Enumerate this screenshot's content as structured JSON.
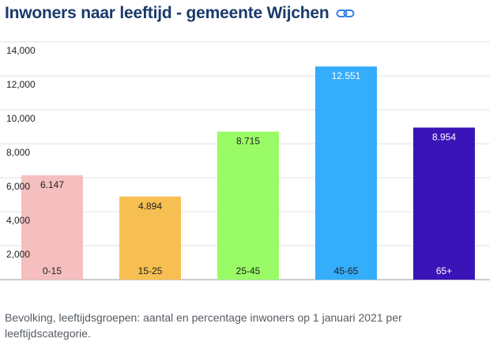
{
  "header": {
    "title": "Inwoners naar leeftijd - gemeente Wijchen",
    "link_icon": "link-icon"
  },
  "caption": "Bevolking, leeftijdsgroepen: aantal en percentage inwoners op 1 januari 2021 per leeftijdscategorie.",
  "colors": {
    "title": "#1a3a6b",
    "link": "#2f80ed"
  },
  "chart_data": {
    "type": "bar",
    "title": "",
    "xlabel": "",
    "ylabel": "",
    "ylim": [
      0,
      14000
    ],
    "grid": true,
    "legend": "none",
    "yticks": [
      "2,000",
      "4,000",
      "6,000",
      "8,000",
      "10,000",
      "12,000",
      "14,000"
    ],
    "ytick_values": [
      2000,
      4000,
      6000,
      8000,
      10000,
      12000,
      14000
    ],
    "categories": [
      "0-15",
      "15-25",
      "25-45",
      "45-65",
      "65+"
    ],
    "values": [
      6147,
      4894,
      8715,
      12551,
      8954
    ],
    "value_labels": [
      "6.147",
      "4.894",
      "8.715",
      "12.551",
      "8.954"
    ],
    "colors": [
      "#f4bfbe",
      "#f7bf52",
      "#99fb66",
      "#34adfb",
      "#3a14b6"
    ]
  }
}
